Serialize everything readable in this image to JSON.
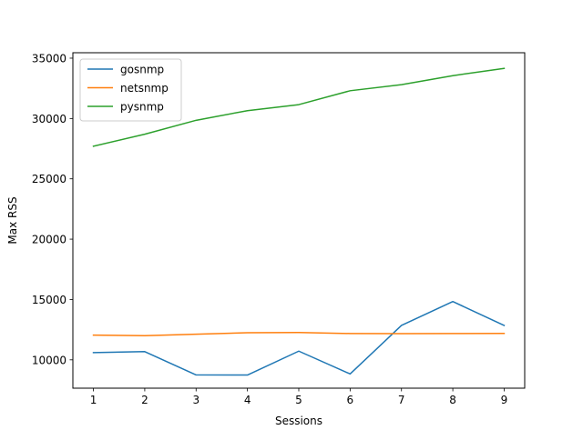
{
  "chart_data": {
    "type": "line",
    "title": "",
    "xlabel": "Sessions",
    "ylabel": "Max RSS",
    "x": [
      1,
      2,
      3,
      4,
      5,
      6,
      7,
      8,
      9
    ],
    "xticks": [
      1,
      2,
      3,
      4,
      5,
      6,
      7,
      8,
      9
    ],
    "yticks": [
      10000,
      15000,
      20000,
      25000,
      30000,
      35000
    ],
    "xlim": [
      0.6,
      9.4
    ],
    "ylim": [
      7650,
      35450
    ],
    "grid": false,
    "legend_position": "top-left",
    "series": [
      {
        "name": "gosnmp",
        "color": "#1f77b4",
        "values": [
          10600,
          10680,
          8750,
          8740,
          10720,
          8830,
          12850,
          14830,
          12850
        ]
      },
      {
        "name": "netsnmp",
        "color": "#ff7f0e",
        "values": [
          12050,
          12000,
          12120,
          12250,
          12260,
          12180,
          12170,
          12180,
          12190
        ]
      },
      {
        "name": "pysnmp",
        "color": "#2ca02c",
        "values": [
          27700,
          28700,
          29850,
          30650,
          31150,
          32300,
          32800,
          33550,
          34150
        ]
      }
    ]
  }
}
